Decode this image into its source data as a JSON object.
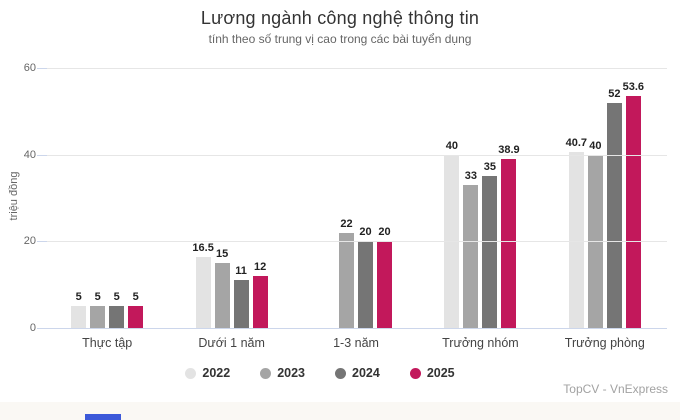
{
  "chart_data": {
    "type": "bar",
    "title": "Lương ngành công nghệ thông tin",
    "subtitle": "tính theo số trung vị cao trong các bài tuyển dụng",
    "ylabel": "triệu đồng",
    "xlabel": "",
    "ylim": [
      0,
      60
    ],
    "yticks": [
      0,
      20,
      40,
      60
    ],
    "grid": true,
    "legend_position": "bottom",
    "categories": [
      "Thực tập",
      "Dưới 1 năm",
      "1-3 năm",
      "Trưởng nhóm",
      "Trưởng phòng"
    ],
    "series": [
      {
        "name": "2022",
        "color": "#e3e3e3",
        "values": [
          5,
          16.5,
          null,
          40,
          40.7
        ]
      },
      {
        "name": "2023",
        "color": "#a5a5a5",
        "values": [
          5,
          15,
          22,
          33,
          40
        ]
      },
      {
        "name": "2024",
        "color": "#757575",
        "values": [
          5,
          11,
          20,
          35,
          52
        ]
      },
      {
        "name": "2025",
        "color": "#c2185b",
        "values": [
          5,
          12,
          20,
          38.9,
          53.6
        ]
      }
    ],
    "source": "TopCV - VnExpress"
  },
  "colors": {
    "gridline": "#e6e6e6",
    "axis_line": "#ccd6eb",
    "bottom_strip": "#faf8f4",
    "blue_fragment": "#3c59d9"
  }
}
